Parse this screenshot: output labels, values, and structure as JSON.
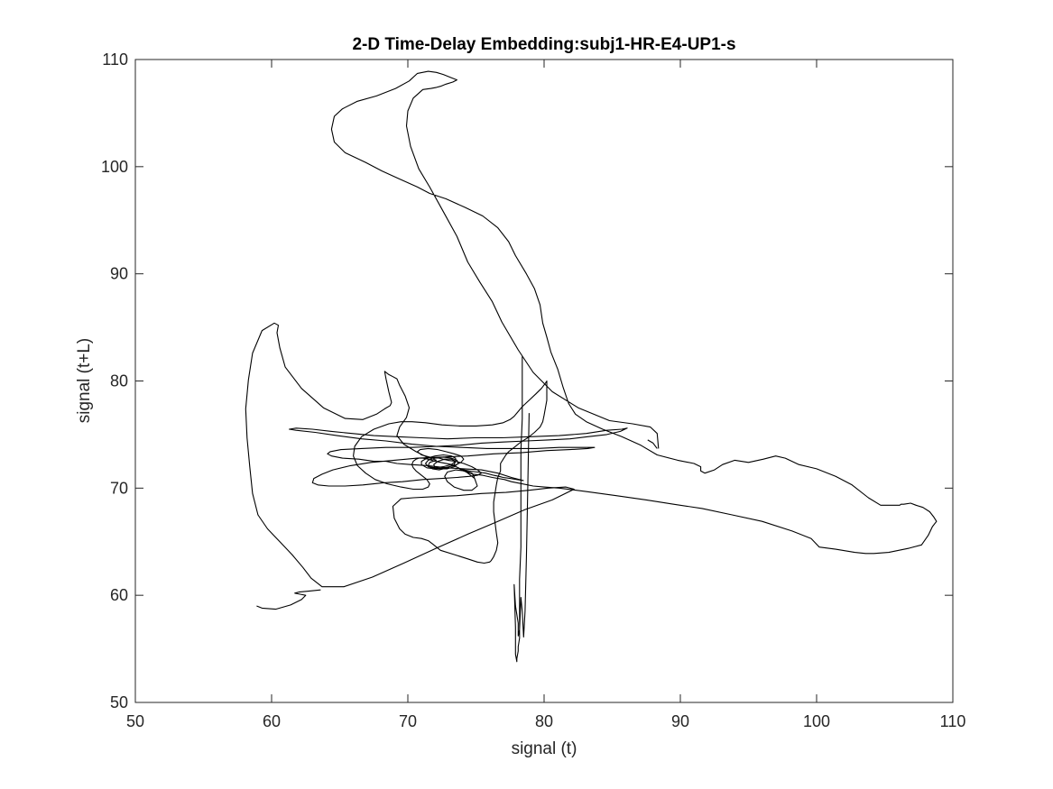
{
  "chart_data": {
    "type": "line",
    "title": "2-D Time-Delay Embedding:subj1-HR-E4-UP1-s",
    "xlabel": "signal (t)",
    "ylabel": "signal (t+L)",
    "xlim": [
      50,
      110
    ],
    "ylim": [
      50,
      110
    ],
    "xticks": [
      50,
      60,
      70,
      80,
      90,
      100,
      110
    ],
    "yticks": [
      50,
      60,
      70,
      80,
      90,
      100,
      110
    ],
    "grid": false,
    "line_color": "#000000",
    "series": [
      {
        "x": [
          88.4,
          88.3,
          87.8,
          86.5,
          84.8,
          82.5,
          80.6,
          79.2,
          78.1,
          76.9,
          76.2,
          75.3,
          74.4,
          73.6,
          72.6,
          71.6,
          70.8,
          70.2,
          69.9,
          70.0,
          70.4,
          71.1,
          71.7,
          72.1,
          72.4,
          72.8,
          73.3,
          73.6,
          73.2,
          72.6,
          72.1,
          71.5,
          70.7,
          70.1,
          69.1,
          67.7,
          66.3,
          65.2,
          64.6,
          64.4,
          64.6,
          65.4,
          66.9,
          68.1,
          69.3,
          70.7,
          71.6,
          72.8,
          74.2,
          75.5,
          76.6,
          77.4,
          77.9,
          78.7,
          79.3,
          79.7,
          79.9,
          80.2,
          80.5,
          81.0,
          81.4,
          81.8,
          82.3,
          83.1,
          84.3,
          85.7,
          87.1,
          88.3,
          89.8,
          91.0,
          91.5,
          91.5,
          91.8,
          92.5,
          93.1,
          94.0,
          95.0,
          96.1,
          97.0,
          97.7,
          98.7,
          100.0,
          101.4,
          102.6,
          103.8,
          104.7,
          105.6,
          106.1,
          106.2,
          106.4,
          106.9,
          107.3,
          107.8,
          108.3,
          108.6,
          108.8,
          108.5,
          108.2,
          107.7,
          106.8,
          105.3,
          104.2,
          103.6,
          102.8,
          101.4,
          100.2,
          99.6,
          98.2,
          96.0,
          93.8,
          91.6,
          89.5,
          87.5,
          85.3,
          83.0,
          81.1,
          80.0,
          79.2,
          78.4,
          77.6,
          77.1,
          76.2,
          75.5,
          74.8,
          74.3,
          73.9,
          73.8,
          74.1,
          74.5,
          75.1,
          75.7,
          76.3,
          76.7,
          77.0,
          77.5,
          78.0,
          78.5
        ],
        "y": [
          73.7,
          75.1,
          75.7,
          76.0,
          76.3,
          77.5,
          79.0,
          80.8,
          82.9,
          85.5,
          87.4,
          89.2,
          91.1,
          93.5,
          95.8,
          98.1,
          99.8,
          101.9,
          103.8,
          105.2,
          106.4,
          107.2,
          107.3,
          107.4,
          107.5,
          107.7,
          107.9,
          108.1,
          108.3,
          108.6,
          108.8,
          108.9,
          108.7,
          108.0,
          107.3,
          106.6,
          106.1,
          105.4,
          104.7,
          103.5,
          102.3,
          101.3,
          100.4,
          99.6,
          98.9,
          98.1,
          97.5,
          97.0,
          96.2,
          95.4,
          94.3,
          93.0,
          91.7,
          90.0,
          88.6,
          87.1,
          85.4,
          84.1,
          82.7,
          81.1,
          79.4,
          77.9,
          76.9,
          76.2,
          75.5,
          74.8,
          74.0,
          73.1,
          72.6,
          72.3,
          72.0,
          71.6,
          71.4,
          71.7,
          72.2,
          72.6,
          72.4,
          72.7,
          73.0,
          72.8,
          72.2,
          71.8,
          71.1,
          70.3,
          69.1,
          68.4,
          68.4,
          68.4,
          68.5,
          68.5,
          68.6,
          68.4,
          68.2,
          67.8,
          67.3,
          66.9,
          66.4,
          65.6,
          64.7,
          64.4,
          64.0,
          63.9,
          63.9,
          64.0,
          64.3,
          64.5,
          65.3,
          66.0,
          66.9,
          67.5,
          68.1,
          68.5,
          68.9,
          69.3,
          69.7,
          70.0,
          70.1,
          70.2,
          70.4,
          70.6,
          70.8,
          71.0,
          71.2,
          71.3,
          71.5,
          71.7,
          71.8,
          71.7,
          71.6,
          71.5,
          71.4,
          71.2,
          71.1,
          71.0,
          70.9,
          70.8,
          70.7
        ]
      },
      {
        "x": [
          78.5,
          77.6,
          76.6,
          75.4,
          74.1,
          72.8,
          71.5,
          70.2,
          69.2,
          68.4,
          67.5,
          66.4,
          65.2,
          64.4,
          64.1,
          64.3,
          65.1,
          66.6,
          68.4,
          70.3,
          72.1,
          73.8,
          75.4,
          77.0,
          78.7,
          80.3,
          81.9,
          83.2,
          84.6,
          85.6,
          86.1,
          85.7,
          84.6,
          83.1,
          81.1,
          79.0,
          76.9,
          74.9,
          72.9,
          71.0,
          69.2,
          67.5,
          65.9,
          64.4,
          63.0,
          61.8,
          61.3,
          61.8,
          63.2,
          64.8,
          66.6,
          68.4,
          70.3,
          72.1,
          74.0,
          75.8,
          77.6,
          79.4,
          81.1,
          82.7,
          83.7,
          83.2,
          81.9,
          80.2,
          78.3,
          76.3,
          74.4,
          72.5,
          70.7,
          69.0,
          67.3,
          65.8,
          64.5,
          63.7,
          63.1,
          63.0,
          63.4,
          64.2,
          65.4,
          66.7,
          68.2,
          69.6,
          71.1,
          72.5,
          73.6,
          74.5,
          75.1,
          75.4,
          75.1,
          74.7,
          74.1,
          73.5,
          72.9
        ],
        "y": [
          70.7,
          71.0,
          71.4,
          71.7,
          71.8,
          71.9,
          72.1,
          72.2,
          72.3,
          72.5,
          72.5,
          72.7,
          72.8,
          73.0,
          73.2,
          73.4,
          73.6,
          73.7,
          73.8,
          73.8,
          73.9,
          74.0,
          74.2,
          74.3,
          74.4,
          74.5,
          74.6,
          74.8,
          75.0,
          75.3,
          75.6,
          75.5,
          75.4,
          75.1,
          74.9,
          74.8,
          74.7,
          74.7,
          74.6,
          74.7,
          74.8,
          74.9,
          75.1,
          75.3,
          75.5,
          75.6,
          75.5,
          75.4,
          75.2,
          74.9,
          74.6,
          74.4,
          74.1,
          73.9,
          73.8,
          73.7,
          73.7,
          73.7,
          73.8,
          73.8,
          73.8,
          73.7,
          73.6,
          73.5,
          73.3,
          73.2,
          73.0,
          72.9,
          72.8,
          72.6,
          72.4,
          72.1,
          71.7,
          71.3,
          70.9,
          70.5,
          70.3,
          70.2,
          70.2,
          70.3,
          70.5,
          70.6,
          70.8,
          70.9,
          71.0,
          71.1,
          71.2,
          71.4,
          71.7,
          72.0,
          72.3,
          72.5,
          72.6
        ]
      },
      {
        "x": [
          72.9,
          72.3,
          71.6,
          71.0,
          70.7,
          70.9,
          71.5,
          72.2,
          72.8,
          73.4,
          73.9,
          74.1,
          73.9,
          73.4,
          72.7,
          72.0,
          71.4,
          71.0,
          71.0,
          71.4,
          72.0,
          72.6,
          73.2,
          73.5,
          73.5,
          73.2,
          72.6,
          72.0,
          71.5,
          71.3,
          71.5,
          72.0,
          72.6,
          73.2,
          73.6,
          73.7,
          73.4,
          72.9,
          72.4,
          72.0,
          71.9,
          72.2,
          72.7,
          73.2,
          73.5,
          73.4,
          72.9,
          72.3,
          71.8,
          71.5,
          71.6,
          72.1
        ],
        "y": [
          72.6,
          72.8,
          72.9,
          73.1,
          73.4,
          73.6,
          73.7,
          73.6,
          73.4,
          73.2,
          73.0,
          72.7,
          72.4,
          72.1,
          71.9,
          71.8,
          71.9,
          72.2,
          72.5,
          72.8,
          73.0,
          73.1,
          73.0,
          72.8,
          72.5,
          72.2,
          72.0,
          71.9,
          72.0,
          72.3,
          72.6,
          72.8,
          72.9,
          72.8,
          72.6,
          72.3,
          72.0,
          71.8,
          71.8,
          71.9,
          72.2,
          72.5,
          72.7,
          72.7,
          72.5,
          72.2,
          71.9,
          71.7,
          71.8,
          72.1,
          72.4,
          72.6
        ]
      },
      {
        "x": [
          72.1,
          71.4,
          70.6,
          69.7,
          69.2,
          69.4,
          69.9,
          70.1,
          69.8,
          69.4,
          69.2,
          68.9,
          68.6,
          68.3,
          68.4,
          68.6,
          68.8,
          68.7,
          68.3,
          67.7,
          66.7,
          65.4,
          63.8,
          62.2,
          61.0,
          60.6,
          60.4,
          60.5,
          60.2,
          59.3,
          58.6,
          58.3,
          58.1,
          58.2,
          58.4,
          58.6,
          59.0,
          59.7,
          60.6,
          61.5,
          62.3,
          62.9,
          63.7,
          65.3,
          67.4,
          69.7,
          72.1,
          74.4,
          76.6,
          78.6,
          80.6,
          82.2,
          81.6,
          80.3,
          78.9,
          77.2,
          75.4,
          73.6,
          71.9,
          70.4,
          69.5,
          68.9,
          69.0,
          69.4,
          69.8,
          70.4,
          71.0,
          71.5,
          71.8,
          72.4,
          73.4,
          74.4,
          75.1,
          75.6,
          76.0,
          76.1
        ],
        "y": [
          72.6,
          72.9,
          73.4,
          74.1,
          74.9,
          75.7,
          76.6,
          77.5,
          78.6,
          79.6,
          80.2,
          80.4,
          80.6,
          80.9,
          80.2,
          79.0,
          78.0,
          77.7,
          77.4,
          76.9,
          76.4,
          76.5,
          77.5,
          79.3,
          81.3,
          83.1,
          84.5,
          85.2,
          85.4,
          84.7,
          82.6,
          80.1,
          77.4,
          74.7,
          72.0,
          69.5,
          67.5,
          66.2,
          65.0,
          63.8,
          62.6,
          61.6,
          60.8,
          60.8,
          61.7,
          63.0,
          64.4,
          65.7,
          66.9,
          68.0,
          68.9,
          69.9,
          70.1,
          70.0,
          69.8,
          69.6,
          69.5,
          69.3,
          69.2,
          69.1,
          69.0,
          68.3,
          67.2,
          66.2,
          65.7,
          65.4,
          65.3,
          65.1,
          64.8,
          64.2,
          63.8,
          63.4,
          63.1,
          63.0,
          63.1,
          63.2
        ]
      },
      {
        "x": [
          76.1,
          76.3,
          76.5,
          76.6,
          76.5,
          76.4,
          76.3,
          76.3,
          76.4,
          76.5,
          76.6,
          76.8,
          76.8,
          76.8,
          77.0,
          77.2,
          77.4,
          77.8,
          78.3,
          78.8,
          79.3,
          79.7,
          79.9,
          80.0,
          80.1,
          80.2,
          80.2,
          80.2,
          80.2,
          80.2,
          80.1,
          79.8,
          79.4,
          78.9,
          78.4,
          78.0,
          77.8,
          77.5,
          77.0,
          76.2,
          75.0,
          73.8,
          72.5,
          71.3,
          70.3,
          69.5,
          68.6,
          67.5,
          66.6,
          66.1,
          66.0,
          66.3,
          66.9,
          67.6,
          68.5,
          69.5,
          70.4,
          71.1,
          71.5,
          71.6,
          71.4,
          71.0,
          70.6,
          70.4,
          70.3,
          70.4,
          70.6,
          70.8,
          71.1,
          71.5,
          72.0
        ],
        "y": [
          63.2,
          63.6,
          64.2,
          64.9,
          65.8,
          66.8,
          67.8,
          68.7,
          69.5,
          70.3,
          71.0,
          71.6,
          72.0,
          72.3,
          72.7,
          73.1,
          73.4,
          73.8,
          74.3,
          74.7,
          75.2,
          75.7,
          76.2,
          76.8,
          77.5,
          78.2,
          78.9,
          79.5,
          79.9,
          80.0,
          79.8,
          79.3,
          78.8,
          78.2,
          77.6,
          77.0,
          76.7,
          76.4,
          76.1,
          75.9,
          75.8,
          75.8,
          75.9,
          76.1,
          76.2,
          76.2,
          76.0,
          75.5,
          74.8,
          73.9,
          73.0,
          72.1,
          71.4,
          70.8,
          70.4,
          70.1,
          69.9,
          69.9,
          70.1,
          70.4,
          70.8,
          71.2,
          71.6,
          71.9,
          72.2,
          72.5,
          72.7,
          72.8,
          72.8,
          72.7,
          72.5
        ]
      },
      {
        "x": [
          72.0,
          73.2,
          74.2,
          74.9,
          75.1,
          74.7,
          74.1,
          73.4,
          72.9,
          72.7,
          72.9,
          73.5,
          74.2,
          74.7,
          74.9
        ],
        "y": [
          72.5,
          72.2,
          71.6,
          70.9,
          70.2,
          69.8,
          69.8,
          70.1,
          70.6,
          71.1,
          71.5,
          71.7,
          71.6,
          71.4,
          71.0
        ]
      },
      {
        "x": [
          78.4,
          78.4,
          78.4,
          78.3,
          78.3,
          78.3,
          78.3,
          78.2,
          78.2,
          78.2,
          78.1,
          78.1,
          78.0,
          78.0,
          77.9,
          77.9,
          77.8,
          77.9,
          78.1,
          78.1,
          78.2,
          78.3,
          78.4,
          78.5,
          78.6,
          78.7,
          78.8,
          78.9
        ],
        "y": [
          82.3,
          79.5,
          76.5,
          73.5,
          70.5,
          67.5,
          64.5,
          61.5,
          58.5,
          56.0,
          55.2,
          54.8,
          54.1,
          53.8,
          54.5,
          57.0,
          61.0,
          59.0,
          57.4,
          56.2,
          56.8,
          59.8,
          58.5,
          56.1,
          58.5,
          63.5,
          70.0,
          77.0
        ]
      },
      {
        "x": [
          58.9,
          59.3,
          60.3,
          61.4,
          62.2,
          62.5,
          62.1,
          61.7,
          62.0,
          62.8,
          63.6
        ],
        "y": [
          59.0,
          58.8,
          58.7,
          59.1,
          59.6,
          60.0,
          60.1,
          60.2,
          60.3,
          60.4,
          60.5
        ]
      },
      {
        "x": [
          87.6,
          88.0,
          88.3
        ],
        "y": [
          74.5,
          74.2,
          73.7
        ]
      }
    ]
  }
}
